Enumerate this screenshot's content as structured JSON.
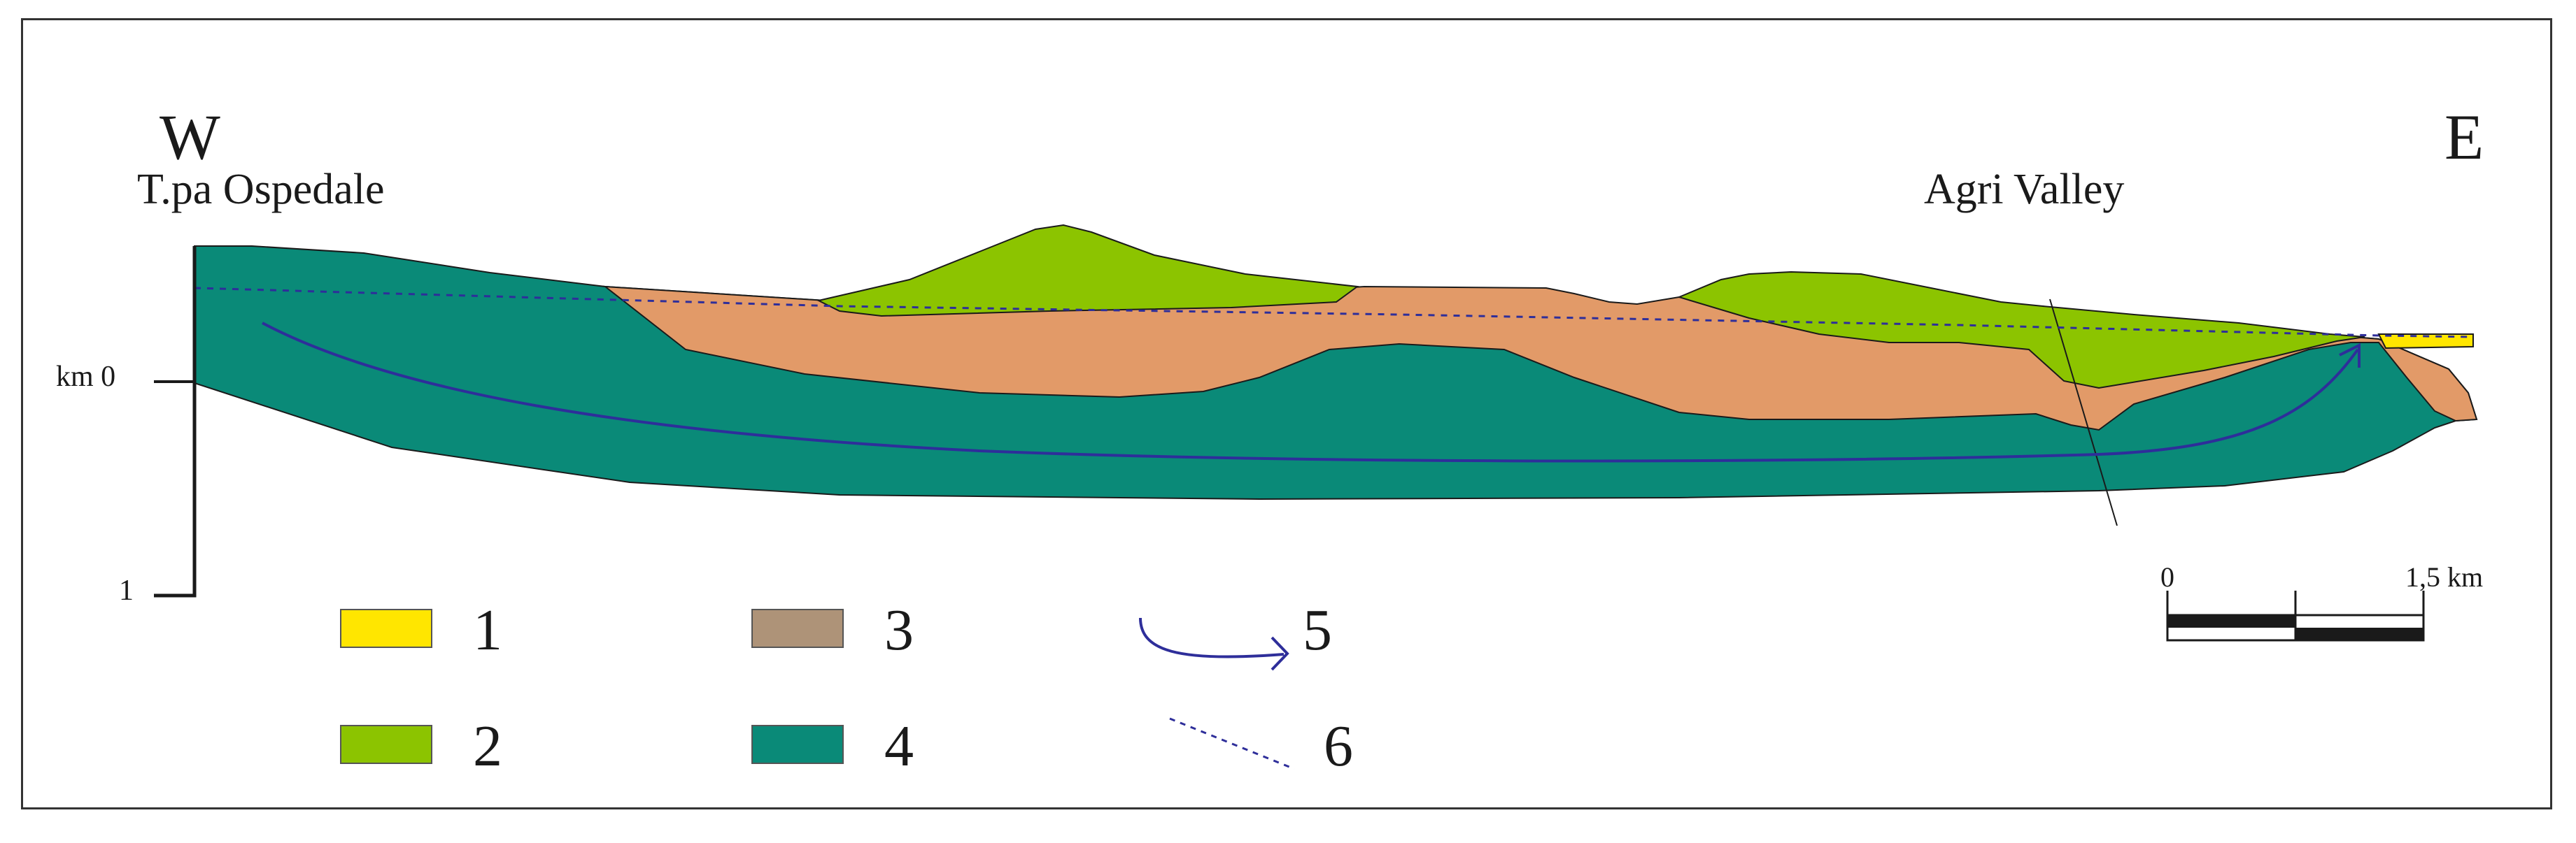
{
  "header": {
    "west": "W",
    "east": "E",
    "west_place": "T.pa Ospedale",
    "east_place": "Agri Valley"
  },
  "depth_axis": {
    "top_label": "km 0",
    "bottom_label": "1"
  },
  "scale_bar": {
    "start": "0",
    "end": "1,5 km"
  },
  "legend": [
    {
      "number": "1",
      "symbol": "fill-box",
      "color": "#ffe600"
    },
    {
      "number": "2",
      "symbol": "fill-box",
      "color": "#8cc400"
    },
    {
      "number": "3",
      "symbol": "fill-box",
      "color": "#ae9378"
    },
    {
      "number": "4",
      "symbol": "fill-box",
      "color": "#0a8a78"
    },
    {
      "number": "5",
      "symbol": "flow-arrow",
      "color": "#2e2e9a"
    },
    {
      "number": "6",
      "symbol": "dashed-line",
      "color": "#2e2e9a"
    }
  ],
  "colors": {
    "unit_1": "#ffe600",
    "unit_2": "#8cc400",
    "unit_3_section": "#e29a68",
    "unit_4": "#0a8a78",
    "flow_line": "#2e2e9a"
  }
}
